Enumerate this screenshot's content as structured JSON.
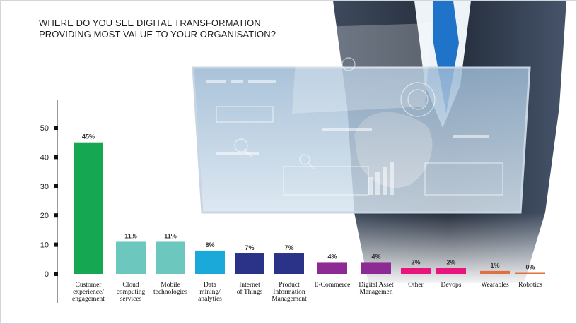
{
  "header": {
    "title_line1": "WHERE DO YOU SEE DIGITAL TRANSFORMATION",
    "title_line2": "PROVIDING MOST VALUE TO YOUR ORGANISATION?"
  },
  "chart_data": {
    "type": "bar",
    "title": "WHERE DO YOU SEE DIGITAL TRANSFORMATION PROVIDING MOST VALUE TO YOUR ORGANISATION?",
    "xlabel": "",
    "ylabel": "",
    "ylim": [
      0,
      50
    ],
    "yticks": [
      0,
      10,
      20,
      30,
      40,
      50
    ],
    "grid": false,
    "categories": [
      "Customer experience/ engagement",
      "Cloud computing services",
      "Mobile technologies",
      "Data mining/ analytics",
      "Internet of Things",
      "Product Information Management",
      "E-Commerce",
      "Digital Asset Managemen",
      "Other",
      "Devops",
      "Wearables",
      "Robotics"
    ],
    "category_lines": [
      [
        "Customer",
        "experience/",
        "engagement"
      ],
      [
        "Cloud",
        "computing",
        "services"
      ],
      [
        "Mobile",
        "technologies"
      ],
      [
        "Data",
        "mining/",
        "analytics"
      ],
      [
        "Internet",
        "of Things"
      ],
      [
        "Product",
        "Information",
        "Management"
      ],
      [
        "E-Commerce"
      ],
      [
        "Digital Asset",
        "Managemen"
      ],
      [
        "Other"
      ],
      [
        "Devops"
      ],
      [
        "Wearables"
      ],
      [
        "Robotics"
      ]
    ],
    "values": [
      45,
      11,
      11,
      8,
      7,
      7,
      4,
      4,
      2,
      2,
      1,
      0
    ],
    "data_labels": [
      "45%",
      "11%",
      "11%",
      "8%",
      "7%",
      "7%",
      "4%",
      "4%",
      "2%",
      "2%",
      "1%",
      "0%"
    ],
    "colors": [
      "#16a753",
      "#6cc8bf",
      "#6cc8bf",
      "#1ba9da",
      "#2b3389",
      "#2b3389",
      "#8e2a93",
      "#8e2a93",
      "#e8157f",
      "#e8157f",
      "#e07040",
      "#e07040"
    ]
  }
}
